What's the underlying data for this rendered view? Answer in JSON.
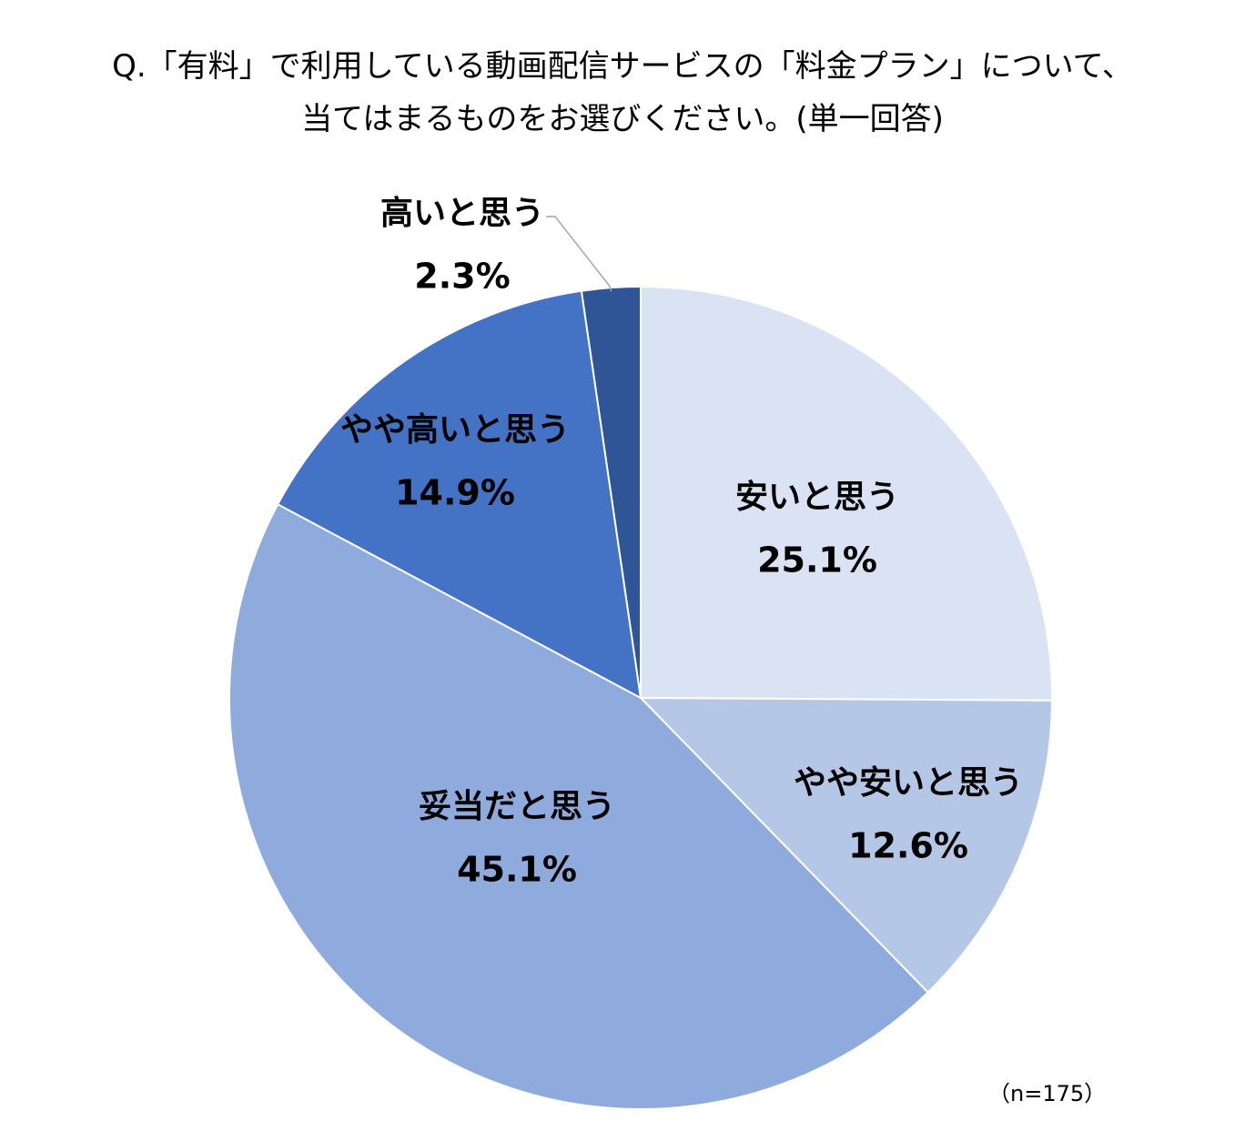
{
  "chart_data": {
    "type": "pie",
    "title": [
      "Q.「有料」で利用している動画配信サービスの「料金プラン」について、",
      "当てはまるものをお選びください。(単一回答)"
    ],
    "slices": [
      {
        "label": "安いと思う",
        "value": 25.1,
        "value_label": "25.1%",
        "color": "#dae3f3"
      },
      {
        "label": "やや安いと思う",
        "value": 12.6,
        "value_label": "12.6%",
        "color": "#b4c7e7"
      },
      {
        "label": "妥当だと思う",
        "value": 45.1,
        "value_label": "45.1%",
        "color": "#8faadc"
      },
      {
        "label": "やや高いと思う",
        "value": 14.9,
        "value_label": "14.9%",
        "color": "#4472c4"
      },
      {
        "label": "高いと思う",
        "value": 2.3,
        "value_label": "2.3%",
        "color": "#2f5597"
      }
    ],
    "note": "（n=175）",
    "start": "12 o'clock",
    "direction": "clockwise",
    "legend": "none"
  }
}
